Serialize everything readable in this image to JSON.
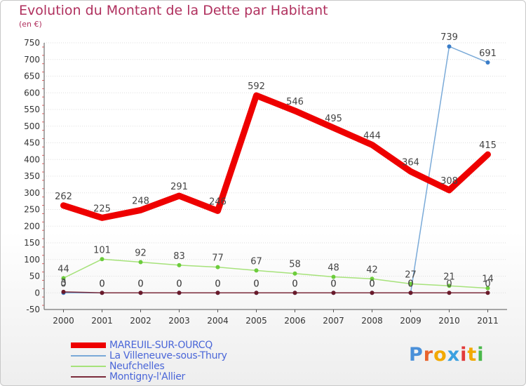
{
  "chart_data": {
    "type": "line",
    "title": "Evolution du Montant de la Dette par Habitant",
    "unit_label": "(en €)",
    "x": [
      "2000",
      "2001",
      "2002",
      "2003",
      "2004",
      "2005",
      "2006",
      "2007",
      "2008",
      "2009",
      "2010",
      "2011"
    ],
    "ylim": [
      -50,
      750
    ],
    "yticks": [
      -50,
      0,
      50,
      100,
      150,
      200,
      250,
      300,
      350,
      400,
      450,
      500,
      550,
      600,
      650,
      700,
      750
    ],
    "grid": "horizontal",
    "series": [
      {
        "name": "MAREUIL-SUR-OURCQ",
        "color": "#ee0000",
        "values": [
          262,
          225,
          248,
          291,
          246,
          592,
          546,
          495,
          444,
          364,
          308,
          415
        ],
        "labels": [
          "262",
          "225",
          "248",
          "291",
          "246",
          "592",
          "546",
          "495",
          "444",
          "364",
          "308",
          "415"
        ]
      },
      {
        "name": "La Villeneuve-sous-Thury",
        "color": "#7aaad8",
        "values": [
          0,
          0,
          0,
          0,
          0,
          0,
          0,
          0,
          0,
          0,
          739,
          691
        ],
        "labels": [
          "0",
          "0",
          "0",
          "0",
          "0",
          "0",
          "0",
          "0",
          "0",
          "0",
          "739",
          "691"
        ]
      },
      {
        "name": "Neufchelles",
        "color": "#a6e27a",
        "values": [
          44,
          101,
          92,
          83,
          77,
          67,
          58,
          48,
          42,
          27,
          21,
          14
        ],
        "labels": [
          "44",
          "101",
          "92",
          "83",
          "77",
          "67",
          "58",
          "48",
          "42",
          "27",
          "21",
          "14"
        ]
      },
      {
        "name": "Montigny-l'Allier",
        "color": "#7b2b3b",
        "values": [
          3,
          0,
          0,
          0,
          0,
          0,
          0,
          0,
          0,
          0,
          0,
          0
        ],
        "labels": [
          "3",
          "0",
          "0",
          "0",
          "0",
          "0",
          "0",
          "0",
          "0",
          "0",
          "0",
          "0"
        ]
      }
    ],
    "legend_position": "bottom-left"
  },
  "logo": {
    "text": "Proxiti",
    "colors": [
      "#4a90d9",
      "#e8622c",
      "#f2a900",
      "#3aa0e0",
      "#e23a3a",
      "#f2a900",
      "#4ab84a"
    ]
  }
}
